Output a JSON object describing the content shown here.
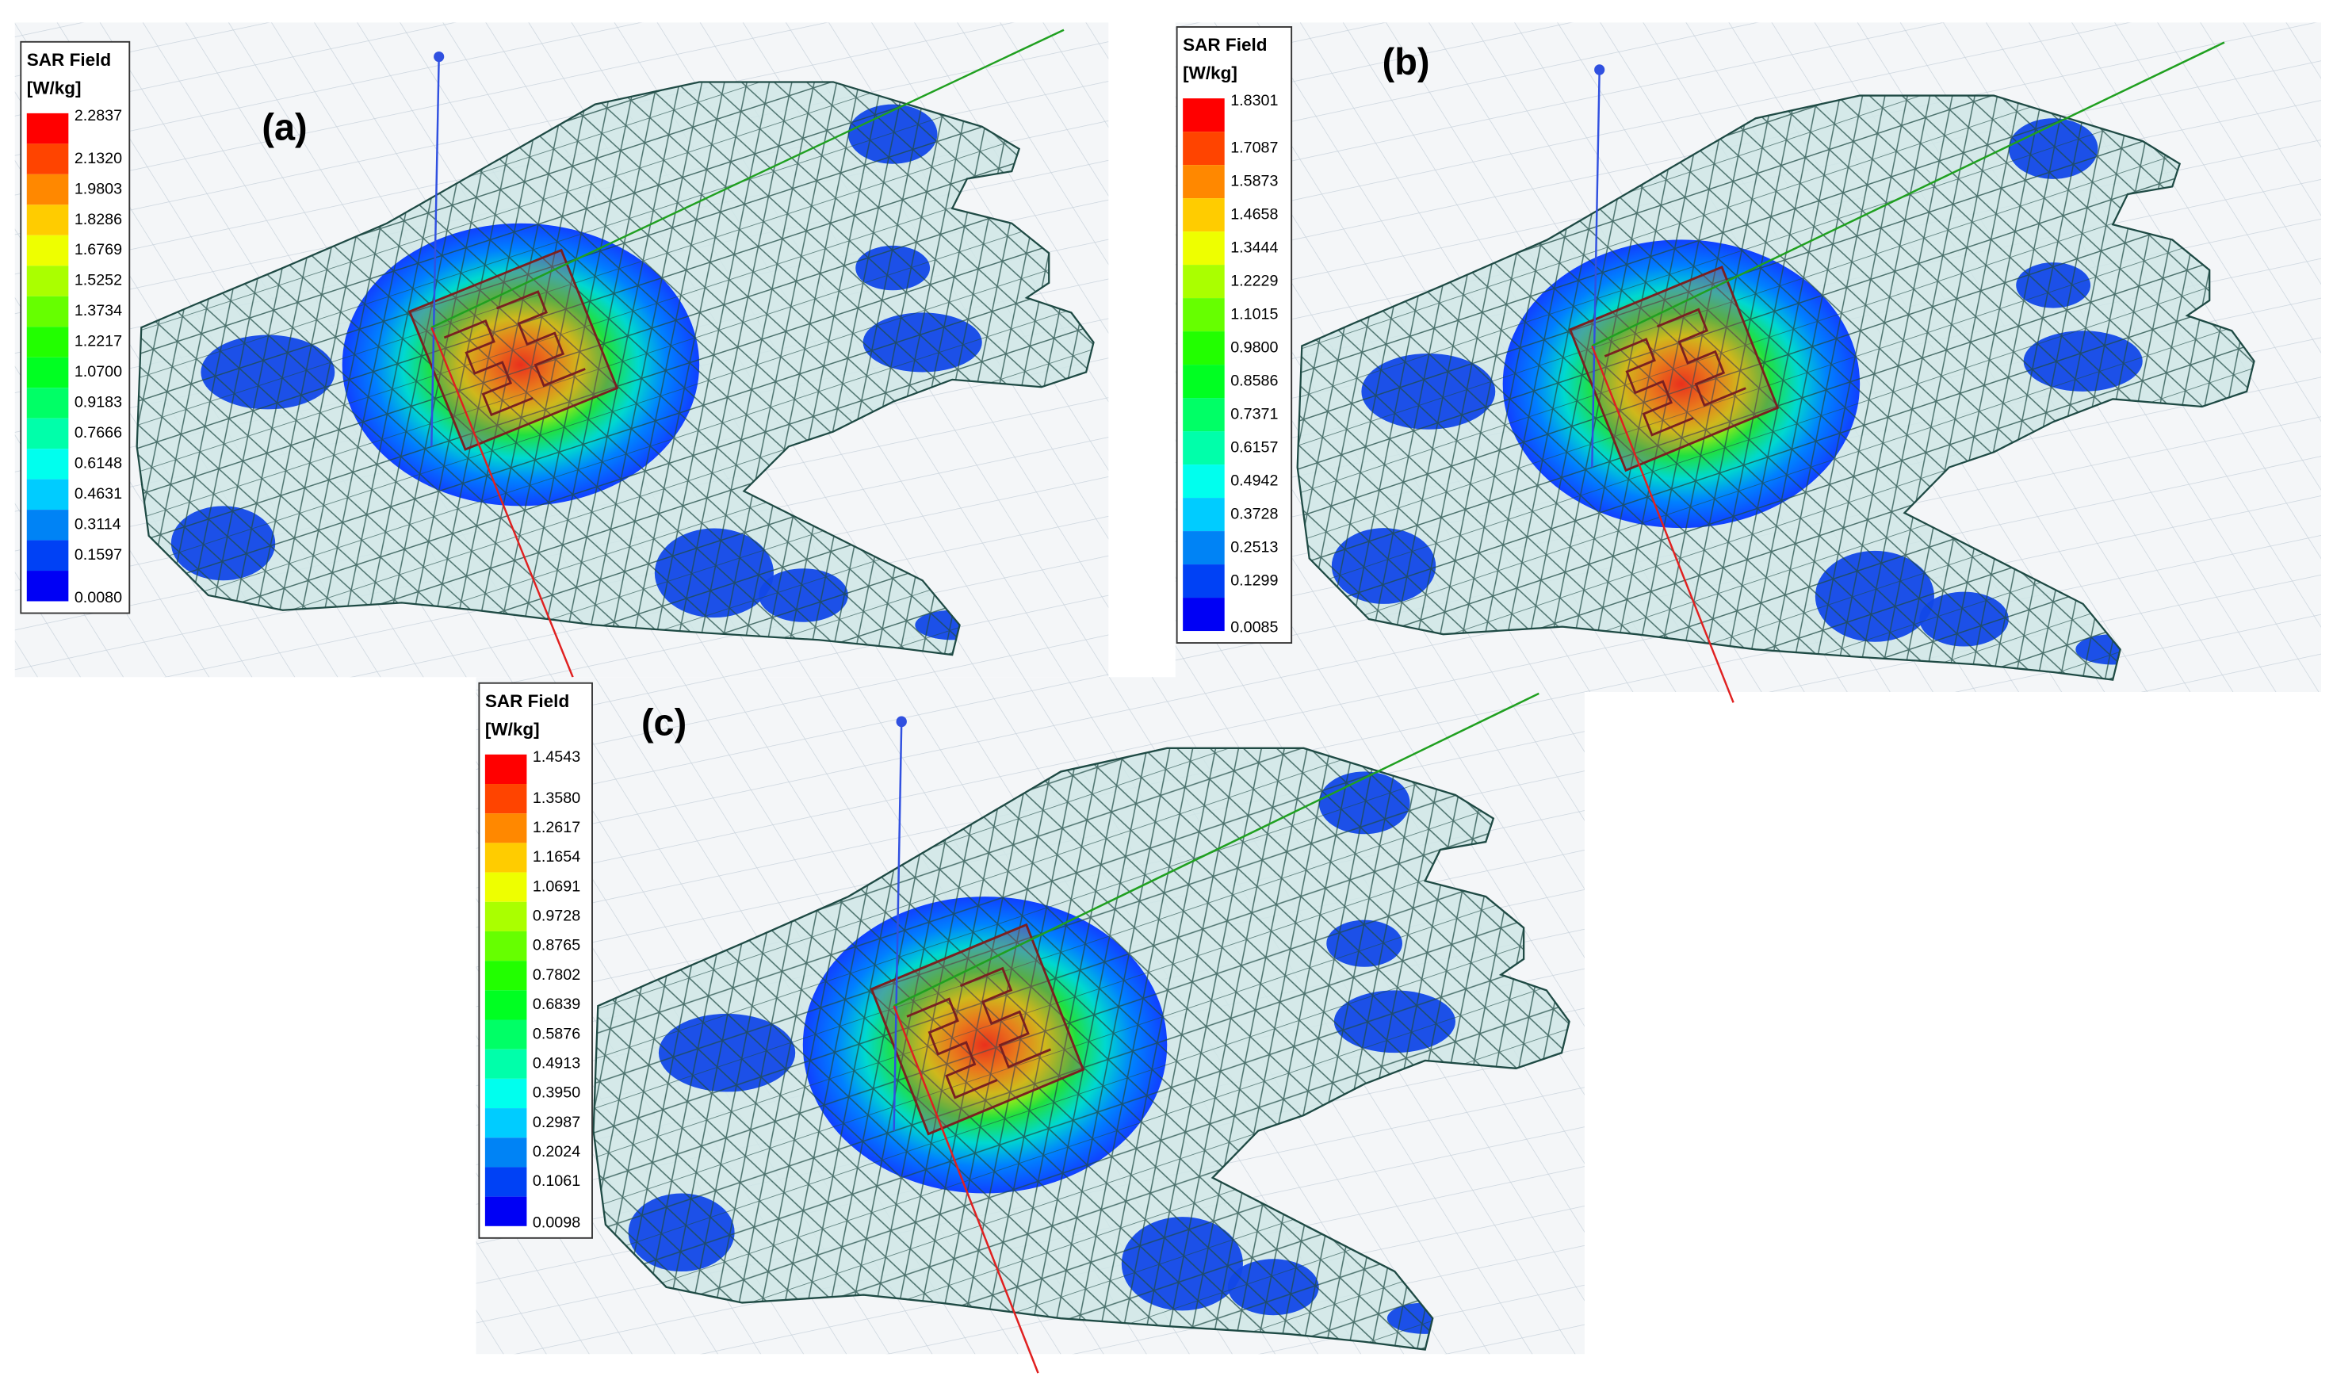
{
  "panels": [
    {
      "label": "(a)",
      "legend": {
        "title": "SAR Field",
        "unit": "[W/kg]",
        "ticks": [
          "2.2837",
          "2.1320",
          "1.9803",
          "1.8286",
          "1.6769",
          "1.5252",
          "1.3734",
          "1.2217",
          "1.0700",
          "0.9183",
          "0.7666",
          "0.6148",
          "0.4631",
          "0.3114",
          "0.1597",
          "0.0080"
        ]
      }
    },
    {
      "label": "(b)",
      "legend": {
        "title": "SAR Field",
        "unit": "[W/kg]",
        "ticks": [
          "1.8301",
          "1.7087",
          "1.5873",
          "1.4658",
          "1.3444",
          "1.2229",
          "1.1015",
          "0.9800",
          "0.8586",
          "0.7371",
          "0.6157",
          "0.4942",
          "0.3728",
          "0.2513",
          "0.1299",
          "0.0085"
        ]
      }
    },
    {
      "label": "(c)",
      "legend": {
        "title": "SAR Field",
        "unit": "[W/kg]",
        "ticks": [
          "1.4543",
          "1.3580",
          "1.2617",
          "1.1654",
          "1.0691",
          "0.9728",
          "0.8765",
          "0.7802",
          "0.6839",
          "0.5876",
          "0.4913",
          "0.3950",
          "0.2987",
          "0.2024",
          "0.1061",
          "0.0098"
        ]
      }
    }
  ]
}
